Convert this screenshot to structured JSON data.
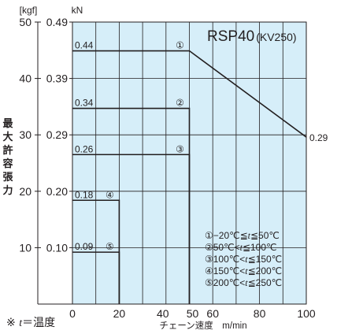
{
  "chart_data": {
    "type": "line",
    "title": "RSP40",
    "subtitle": "(KV250)",
    "xlabel": "チェーン速度　m/min",
    "ylabel": "最大許容張力",
    "ylabel_chars": [
      "最",
      "大",
      "許",
      "容",
      "張",
      "力"
    ],
    "y_unit_left": "[kgf]",
    "y_unit_right": "kN",
    "xlim": [
      0,
      100
    ],
    "ylim_kgf": [
      0,
      50
    ],
    "x_ticks": [
      0,
      20,
      40,
      50,
      60,
      80,
      100
    ],
    "x_tick_labels": [
      "0",
      "20",
      "40",
      "50",
      "60",
      "80",
      "100"
    ],
    "y_ticks_kgf": [
      10,
      20,
      30,
      40,
      50
    ],
    "y_tick_labels_kgf": [
      "10",
      "20",
      "30",
      "40",
      "50"
    ],
    "y_ticks_kn": [
      0.1,
      0.2,
      0.29,
      0.39,
      0.49
    ],
    "y_tick_labels_kn": [
      "0.10",
      "0.20",
      "0.29",
      "0.39",
      "0.49"
    ],
    "grid": true,
    "background_color": "#d6eef9",
    "line_color": "#231f20",
    "series": [
      {
        "name": "①−20℃≦t≦50℃",
        "marker": "①",
        "value_label": "0.44",
        "points": [
          [
            0,
            44.9
          ],
          [
            50,
            44.9
          ],
          [
            100,
            29.6
          ]
        ],
        "end_label": "0.29"
      },
      {
        "name": "②50℃<t≦100℃",
        "marker": "②",
        "value_label": "0.34",
        "points": [
          [
            0,
            34.7
          ],
          [
            50,
            34.7
          ],
          [
            50,
            0
          ]
        ]
      },
      {
        "name": "③100℃<t≦150℃",
        "marker": "③",
        "value_label": "0.26",
        "points": [
          [
            0,
            26.5
          ],
          [
            50,
            26.5
          ],
          [
            50,
            0
          ]
        ]
      },
      {
        "name": "④150℃<t≦200℃",
        "marker": "④",
        "value_label": "0.18",
        "points": [
          [
            0,
            18.4
          ],
          [
            20,
            18.4
          ],
          [
            20,
            0
          ]
        ]
      },
      {
        "name": "⑤200℃<t≦250℃",
        "marker": "⑤",
        "value_label": "0.09",
        "points": [
          [
            0,
            9.2
          ],
          [
            20,
            9.2
          ],
          [
            20,
            0
          ]
        ]
      }
    ],
    "legend_position": "bottom-right",
    "legend": [
      {
        "mark": "①",
        "pre": "−20℃≦",
        "t": "t",
        "post": "≦50℃"
      },
      {
        "mark": "②",
        "pre": "50℃<",
        "t": "t",
        "post": "≦100℃"
      },
      {
        "mark": "③",
        "pre": "100℃<",
        "t": "t",
        "post": "≦150℃"
      },
      {
        "mark": "④",
        "pre": "150℃<",
        "t": "t",
        "post": "≦200℃"
      },
      {
        "mark": "⑤",
        "pre": "200℃<",
        "t": "t",
        "post": "≦250℃"
      }
    ]
  },
  "footnote": {
    "prefix": "※ ",
    "t": "t",
    "suffix": "＝温度"
  }
}
